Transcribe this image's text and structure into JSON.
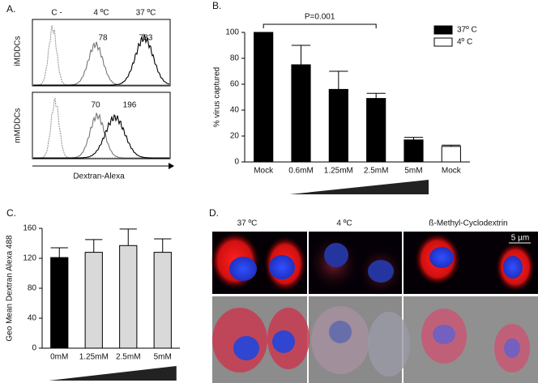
{
  "chart_data": [
    {
      "type": "bar",
      "panel_label": "B.",
      "ylabel": "% virus captured",
      "categories": [
        "Mock",
        "0.6mM",
        "1.25mM",
        "2.5mM",
        "5mM",
        "Mock"
      ],
      "series": [
        {
          "name": "37º C",
          "color": "#000000",
          "values": [
            100,
            75,
            56,
            49,
            17,
            null
          ],
          "errors": [
            0,
            15,
            14,
            4,
            2,
            null
          ]
        },
        {
          "name": "4º C",
          "color": "#ffffff",
          "values": [
            null,
            null,
            null,
            null,
            null,
            12
          ],
          "errors": [
            null,
            null,
            null,
            null,
            null,
            1
          ]
        }
      ],
      "annotation": "P=0.001",
      "ylim": [
        0,
        100
      ],
      "yticks": [
        0,
        20,
        40,
        60,
        80,
        100
      ],
      "legend": "top-right"
    },
    {
      "type": "bar",
      "panel_label": "C.",
      "ylabel": "Geo Mean Dextran Alexa 488",
      "categories": [
        "0mM",
        "1.25mM",
        "2.5mM",
        "5mM"
      ],
      "values": [
        121,
        128,
        137,
        128
      ],
      "errors": [
        13,
        17,
        22,
        18
      ],
      "colors": [
        "#000000",
        "#d9d9d9",
        "#d9d9d9",
        "#d9d9d9"
      ],
      "ylim": [
        0,
        160
      ],
      "yticks": [
        0,
        40,
        80,
        120,
        160
      ]
    }
  ],
  "panel_a": {
    "label": "A.",
    "conditions": [
      "C -",
      "4 ºC",
      "37 ºC"
    ],
    "rows": [
      {
        "name": "iMDDCs",
        "values": [
          78,
          733
        ]
      },
      {
        "name": "mMDDCs",
        "values": [
          70,
          196
        ]
      }
    ],
    "xlabel": "Dextran-Alexa"
  },
  "panel_d": {
    "label": "D.",
    "columns": [
      "37 ºC",
      "4 ºC",
      "ß-Methyl-Cyclodextrin"
    ],
    "scale_bar": "5 µm"
  }
}
